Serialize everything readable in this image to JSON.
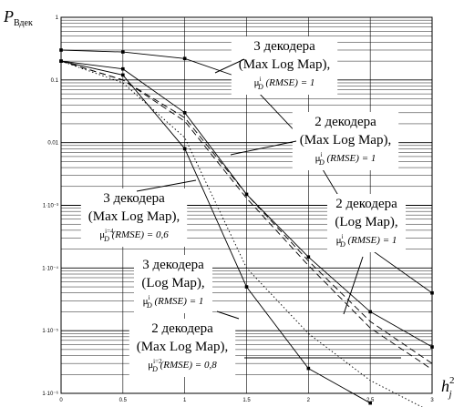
{
  "chart_data": {
    "type": "line",
    "ylabel": {
      "main": "P",
      "sub": "Вдек"
    },
    "xlabel": {
      "main": "h",
      "sub": "j",
      "sup": "2"
    },
    "scale_y": "log",
    "xlim": [
      0,
      3
    ],
    "ylim": [
      1e-06,
      1
    ],
    "grid": true,
    "x_ticks": [
      {
        "v": 0,
        "label": "0"
      },
      {
        "v": 0.5,
        "label": "0.5"
      },
      {
        "v": 1,
        "label": "1"
      },
      {
        "v": 1.5,
        "label": "1.5"
      },
      {
        "v": 2,
        "label": "2"
      },
      {
        "v": 2.5,
        "label": "2.5"
      },
      {
        "v": 3,
        "label": "3"
      }
    ],
    "y_ticks": [
      {
        "v": 1,
        "label": "1"
      },
      {
        "v": 0.1,
        "label": "0.1"
      },
      {
        "v": 0.01,
        "label": "0.01"
      },
      {
        "v": 0.001,
        "label": "1·10⁻³"
      },
      {
        "v": 0.0001,
        "label": "1·10⁻⁴"
      },
      {
        "v": 1e-05,
        "label": "1·10⁻⁵"
      },
      {
        "v": 1e-06,
        "label": "1·10⁻⁶"
      }
    ],
    "series": [
      {
        "id": "s1",
        "style": "solid",
        "marker": true,
        "x": [
          0,
          0.5,
          1.0,
          1.5,
          2.0,
          2.5,
          3.0
        ],
        "y": [
          0.3,
          0.28,
          0.22,
          0.1,
          0.009,
          0.0002,
          4e-05
        ]
      },
      {
        "id": "s2",
        "style": "solid",
        "marker": true,
        "x": [
          0,
          0.5,
          1.0,
          1.5,
          2.0,
          2.5,
          3.0
        ],
        "y": [
          0.2,
          0.15,
          0.03,
          0.0015,
          0.00015,
          2e-05,
          5.5e-06
        ]
      },
      {
        "id": "s3",
        "style": "solid",
        "marker": true,
        "x": [
          0,
          0.5,
          1.0,
          1.5,
          2.0,
          2.5
        ],
        "y": [
          0.2,
          0.12,
          0.008,
          5e-05,
          2.5e-06,
          7e-07
        ]
      },
      {
        "id": "s4",
        "style": "dashed",
        "marker": false,
        "x": [
          0,
          0.5,
          1.0,
          1.5,
          2.0,
          2.5,
          3.0
        ],
        "y": [
          0.2,
          0.1,
          0.025,
          0.0015,
          0.00013,
          1.4e-05,
          3e-06
        ]
      },
      {
        "id": "s5",
        "style": "dashed",
        "marker": false,
        "x": [
          0,
          0.5,
          1.0,
          1.5,
          2.0,
          2.5,
          3.0
        ],
        "y": [
          0.2,
          0.1,
          0.022,
          0.0013,
          0.00011,
          1.1e-05,
          2.4e-06
        ]
      },
      {
        "id": "s6",
        "style": "dotted",
        "marker": false,
        "x": [
          0,
          0.5,
          1.0,
          1.5,
          2.0,
          2.5,
          3.0
        ],
        "y": [
          0.2,
          0.09,
          0.012,
          0.0001,
          9e-06,
          1.6e-06,
          5e-07
        ]
      }
    ],
    "annotations": [
      {
        "id": "a1",
        "line1": "3 декодера",
        "line2": "(Max Log Map),",
        "line3": "μ",
        "sub": "D",
        "sup": "i",
        "rest": "(RMSE) = 1"
      },
      {
        "id": "a2",
        "line1": "2 декодера",
        "line2": "(Max Log Map),",
        "line3": "μ",
        "sub": "D",
        "sup": "i",
        "rest": "(RMSE) = 1"
      },
      {
        "id": "a3",
        "line1": "3 декодера",
        "line2": "(Max Log Map),",
        "line3": "μ",
        "sub": "D",
        "sup": "i=4",
        "rest": "(RMSE) = 0,6"
      },
      {
        "id": "a4",
        "line1": "2 декодера",
        "line2": "(Log Map),",
        "line3": "μ",
        "sub": "D",
        "sup": "i",
        "rest": "(RMSE) = 1"
      },
      {
        "id": "a5",
        "line1": "3 декодера",
        "line2": "(Log Map),",
        "line3": "μ",
        "sub": "D",
        "sup": "i",
        "rest": "(RMSE) = 1"
      },
      {
        "id": "a6",
        "line1": "2 декодера",
        "line2": "(Max Log Map),",
        "line3": "μ",
        "sub": "D",
        "sup": "i=2",
        "rest": "(RMSE) = 0,8"
      }
    ]
  }
}
